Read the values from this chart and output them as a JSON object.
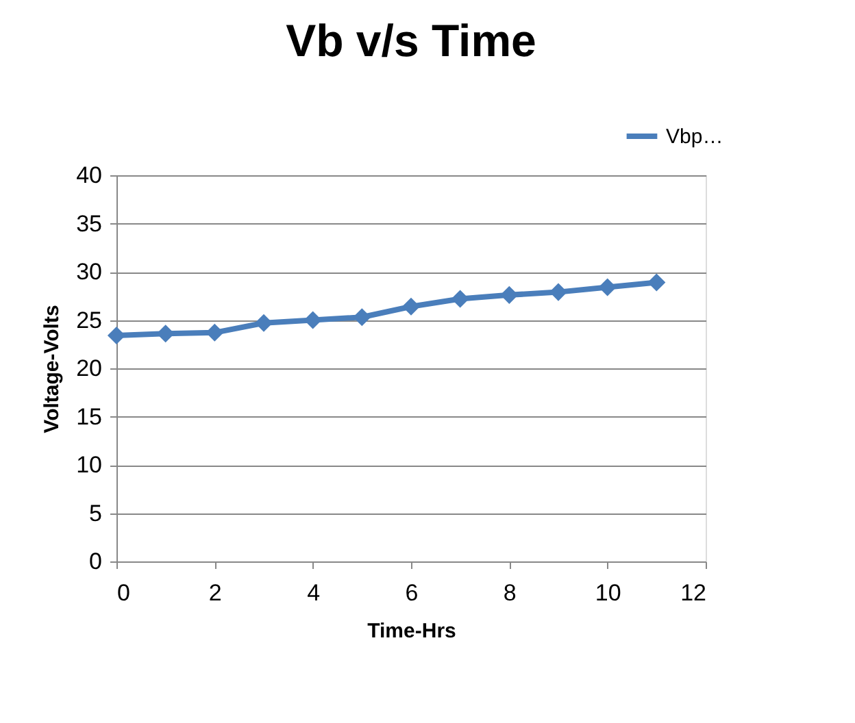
{
  "chart_data": {
    "type": "line",
    "title": "Vb v/s Time",
    "xlabel": "Time-Hrs",
    "ylabel": "Voltage-Volts",
    "x": [
      0,
      1,
      2,
      3,
      4,
      5,
      6,
      7,
      8,
      9,
      10,
      11
    ],
    "series": [
      {
        "name": "Vbp…",
        "color": "#4a7ebb",
        "values": [
          23.4,
          23.6,
          23.7,
          24.7,
          25.0,
          25.3,
          26.4,
          27.2,
          27.6,
          27.9,
          28.4,
          28.9
        ]
      }
    ],
    "xlim": [
      0,
      12
    ],
    "xticks": [
      0,
      2,
      4,
      6,
      8,
      10,
      12
    ],
    "ylim": [
      0,
      40
    ],
    "yticks": [
      0,
      5,
      10,
      15,
      20,
      25,
      30,
      35,
      40
    ],
    "grid": "y",
    "legend": "top right",
    "marker": "diamond",
    "line_style": "solid"
  }
}
